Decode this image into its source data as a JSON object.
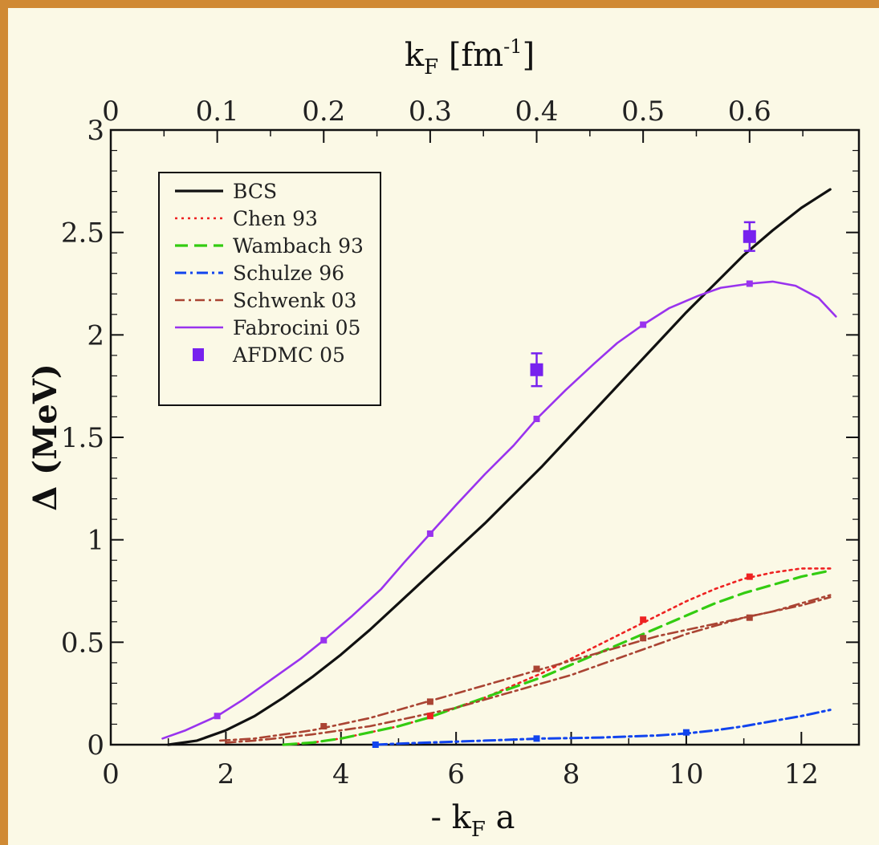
{
  "chart_data": {
    "type": "line",
    "title": "",
    "xlabel": "- k_F a",
    "xlabel_parts": {
      "prefix": "- k",
      "sub": "F",
      "suffix": " a"
    },
    "ylabel": "Δ (MeV)",
    "top_xlabel": "k_F [fm^-1]",
    "top_xlabel_parts": {
      "main": "k",
      "sub": "F",
      "bracket_open": " [fm",
      "sup": "-1",
      "bracket_close": "]"
    },
    "xlim": [
      0,
      13
    ],
    "ylim": [
      0,
      3
    ],
    "x_ticks": [
      0,
      2,
      4,
      6,
      8,
      10,
      12
    ],
    "y_ticks": [
      "0",
      "0.5",
      "1",
      "1.5",
      "2",
      "2.5",
      "3"
    ],
    "top_ticks": [
      {
        "label": "0",
        "x": 0.0
      },
      {
        "label": "0.1",
        "x": 1.85
      },
      {
        "label": "0.2",
        "x": 3.7
      },
      {
        "label": "0.3",
        "x": 5.55
      },
      {
        "label": "0.4",
        "x": 7.4
      },
      {
        "label": "0.5",
        "x": 9.25
      },
      {
        "label": "0.6",
        "x": 11.1
      }
    ],
    "legend_position": "top-left",
    "series": [
      {
        "name": "BCS",
        "color": "#111111",
        "dash": "solid",
        "width": 3.2,
        "x": [
          1.0,
          1.5,
          2.0,
          2.5,
          3.0,
          3.5,
          4.0,
          4.5,
          5.0,
          5.5,
          6.0,
          6.5,
          7.0,
          7.5,
          8.0,
          8.5,
          9.0,
          9.5,
          10.0,
          10.5,
          11.0,
          11.5,
          12.0,
          12.5
        ],
        "y": [
          0.0,
          0.02,
          0.07,
          0.14,
          0.23,
          0.33,
          0.44,
          0.56,
          0.69,
          0.82,
          0.95,
          1.08,
          1.22,
          1.36,
          1.51,
          1.66,
          1.81,
          1.96,
          2.11,
          2.25,
          2.39,
          2.51,
          2.62,
          2.71
        ]
      },
      {
        "name": "Chen 93",
        "color": "#ee2222",
        "dash": "3,5",
        "width": 2.6,
        "x": [
          3.0,
          3.5,
          4.0,
          4.5,
          5.0,
          5.5,
          6.0,
          6.5,
          7.0,
          7.5,
          8.0,
          8.5,
          9.0,
          9.5,
          10.0,
          10.5,
          11.0,
          11.5,
          12.0,
          12.5
        ],
        "y": [
          0.0,
          0.01,
          0.03,
          0.06,
          0.09,
          0.13,
          0.18,
          0.23,
          0.29,
          0.35,
          0.42,
          0.49,
          0.56,
          0.63,
          0.7,
          0.76,
          0.81,
          0.84,
          0.86,
          0.86
        ],
        "markers_x": [
          5.55,
          7.4,
          9.25,
          11.1
        ],
        "markers_y": [
          0.14,
          0.37,
          0.61,
          0.82
        ]
      },
      {
        "name": "Wambach 93",
        "color": "#33cc11",
        "dash": "16,8",
        "width": 3.2,
        "x": [
          3.0,
          3.5,
          4.0,
          4.5,
          5.0,
          5.5,
          6.0,
          6.5,
          7.0,
          7.5,
          8.0,
          8.5,
          9.0,
          9.5,
          10.0,
          10.5,
          11.0,
          11.5,
          12.0,
          12.5
        ],
        "y": [
          0.0,
          0.01,
          0.03,
          0.06,
          0.09,
          0.13,
          0.18,
          0.23,
          0.28,
          0.33,
          0.39,
          0.45,
          0.51,
          0.57,
          0.63,
          0.69,
          0.74,
          0.78,
          0.82,
          0.85
        ]
      },
      {
        "name": "Schulze 96",
        "color": "#1144ee",
        "dash": "14,5,3,5",
        "width": 3.0,
        "x": [
          4.6,
          5.0,
          5.5,
          6.0,
          6.5,
          7.0,
          7.5,
          8.0,
          8.5,
          9.0,
          9.5,
          10.0,
          10.5,
          11.0,
          11.5,
          12.0,
          12.5
        ],
        "y": [
          0.0,
          0.005,
          0.01,
          0.015,
          0.02,
          0.025,
          0.03,
          0.032,
          0.035,
          0.04,
          0.045,
          0.055,
          0.07,
          0.09,
          0.115,
          0.14,
          0.17
        ],
        "markers_x": [
          4.6,
          7.4,
          10.0
        ],
        "markers_y": [
          0.0,
          0.03,
          0.06
        ]
      },
      {
        "name": "Schwenk 03",
        "color": "#aa4433",
        "dash": "12,5,3,5",
        "width": 2.6,
        "x": [
          1.9,
          2.5,
          3.0,
          3.5,
          4.0,
          4.5,
          5.0,
          5.5,
          6.0,
          6.5,
          7.0,
          7.5,
          8.0,
          8.5,
          9.0,
          9.5,
          10.0,
          10.5,
          11.0,
          11.5,
          12.0,
          12.5
        ],
        "y": [
          0.02,
          0.03,
          0.05,
          0.07,
          0.1,
          0.13,
          0.17,
          0.21,
          0.25,
          0.29,
          0.33,
          0.37,
          0.41,
          0.45,
          0.49,
          0.53,
          0.56,
          0.59,
          0.62,
          0.65,
          0.68,
          0.72
        ],
        "markers_x": [
          3.7,
          5.55,
          7.4,
          9.25,
          11.1
        ],
        "markers_y": [
          0.09,
          0.21,
          0.37,
          0.52,
          0.62
        ]
      },
      {
        "name": "Schwenk 03 (lower band)",
        "legend": false,
        "color": "#aa4433",
        "dash": "12,5,3,5",
        "width": 2.6,
        "x": [
          2.0,
          2.5,
          3.0,
          3.5,
          4.0,
          4.5,
          5.0,
          5.5,
          6.0,
          6.5,
          7.0,
          7.5,
          8.0,
          8.5,
          9.0,
          9.5,
          10.0,
          10.5,
          11.0,
          11.5,
          12.0,
          12.5
        ],
        "y": [
          0.01,
          0.02,
          0.035,
          0.05,
          0.07,
          0.09,
          0.12,
          0.15,
          0.18,
          0.22,
          0.26,
          0.3,
          0.34,
          0.39,
          0.44,
          0.49,
          0.54,
          0.58,
          0.62,
          0.65,
          0.69,
          0.73
        ]
      },
      {
        "name": "Fabrocini 05",
        "color": "#9933ee",
        "dash": "solid",
        "width": 2.6,
        "x": [
          0.9,
          1.3,
          1.85,
          2.3,
          2.8,
          3.3,
          3.7,
          4.2,
          4.7,
          5.1,
          5.55,
          6.0,
          6.5,
          7.0,
          7.4,
          7.9,
          8.4,
          8.8,
          9.25,
          9.7,
          10.2,
          10.6,
          11.1,
          11.5,
          11.9,
          12.3,
          12.6
        ],
        "y": [
          0.03,
          0.07,
          0.14,
          0.22,
          0.32,
          0.42,
          0.51,
          0.63,
          0.76,
          0.89,
          1.03,
          1.17,
          1.32,
          1.46,
          1.59,
          1.73,
          1.86,
          1.96,
          2.05,
          2.13,
          2.19,
          2.23,
          2.25,
          2.26,
          2.24,
          2.18,
          2.09
        ],
        "markers_x": [
          1.85,
          3.7,
          5.55,
          7.4,
          9.25,
          11.1
        ],
        "markers_y": [
          0.14,
          0.51,
          1.03,
          1.59,
          2.05,
          2.25
        ]
      }
    ],
    "afdmc": {
      "name": "AFDMC 05",
      "color": "#7722ee",
      "points": [
        {
          "x": 7.4,
          "y": 1.83,
          "err": 0.08
        },
        {
          "x": 11.1,
          "y": 2.48,
          "err": 0.07
        }
      ]
    }
  }
}
